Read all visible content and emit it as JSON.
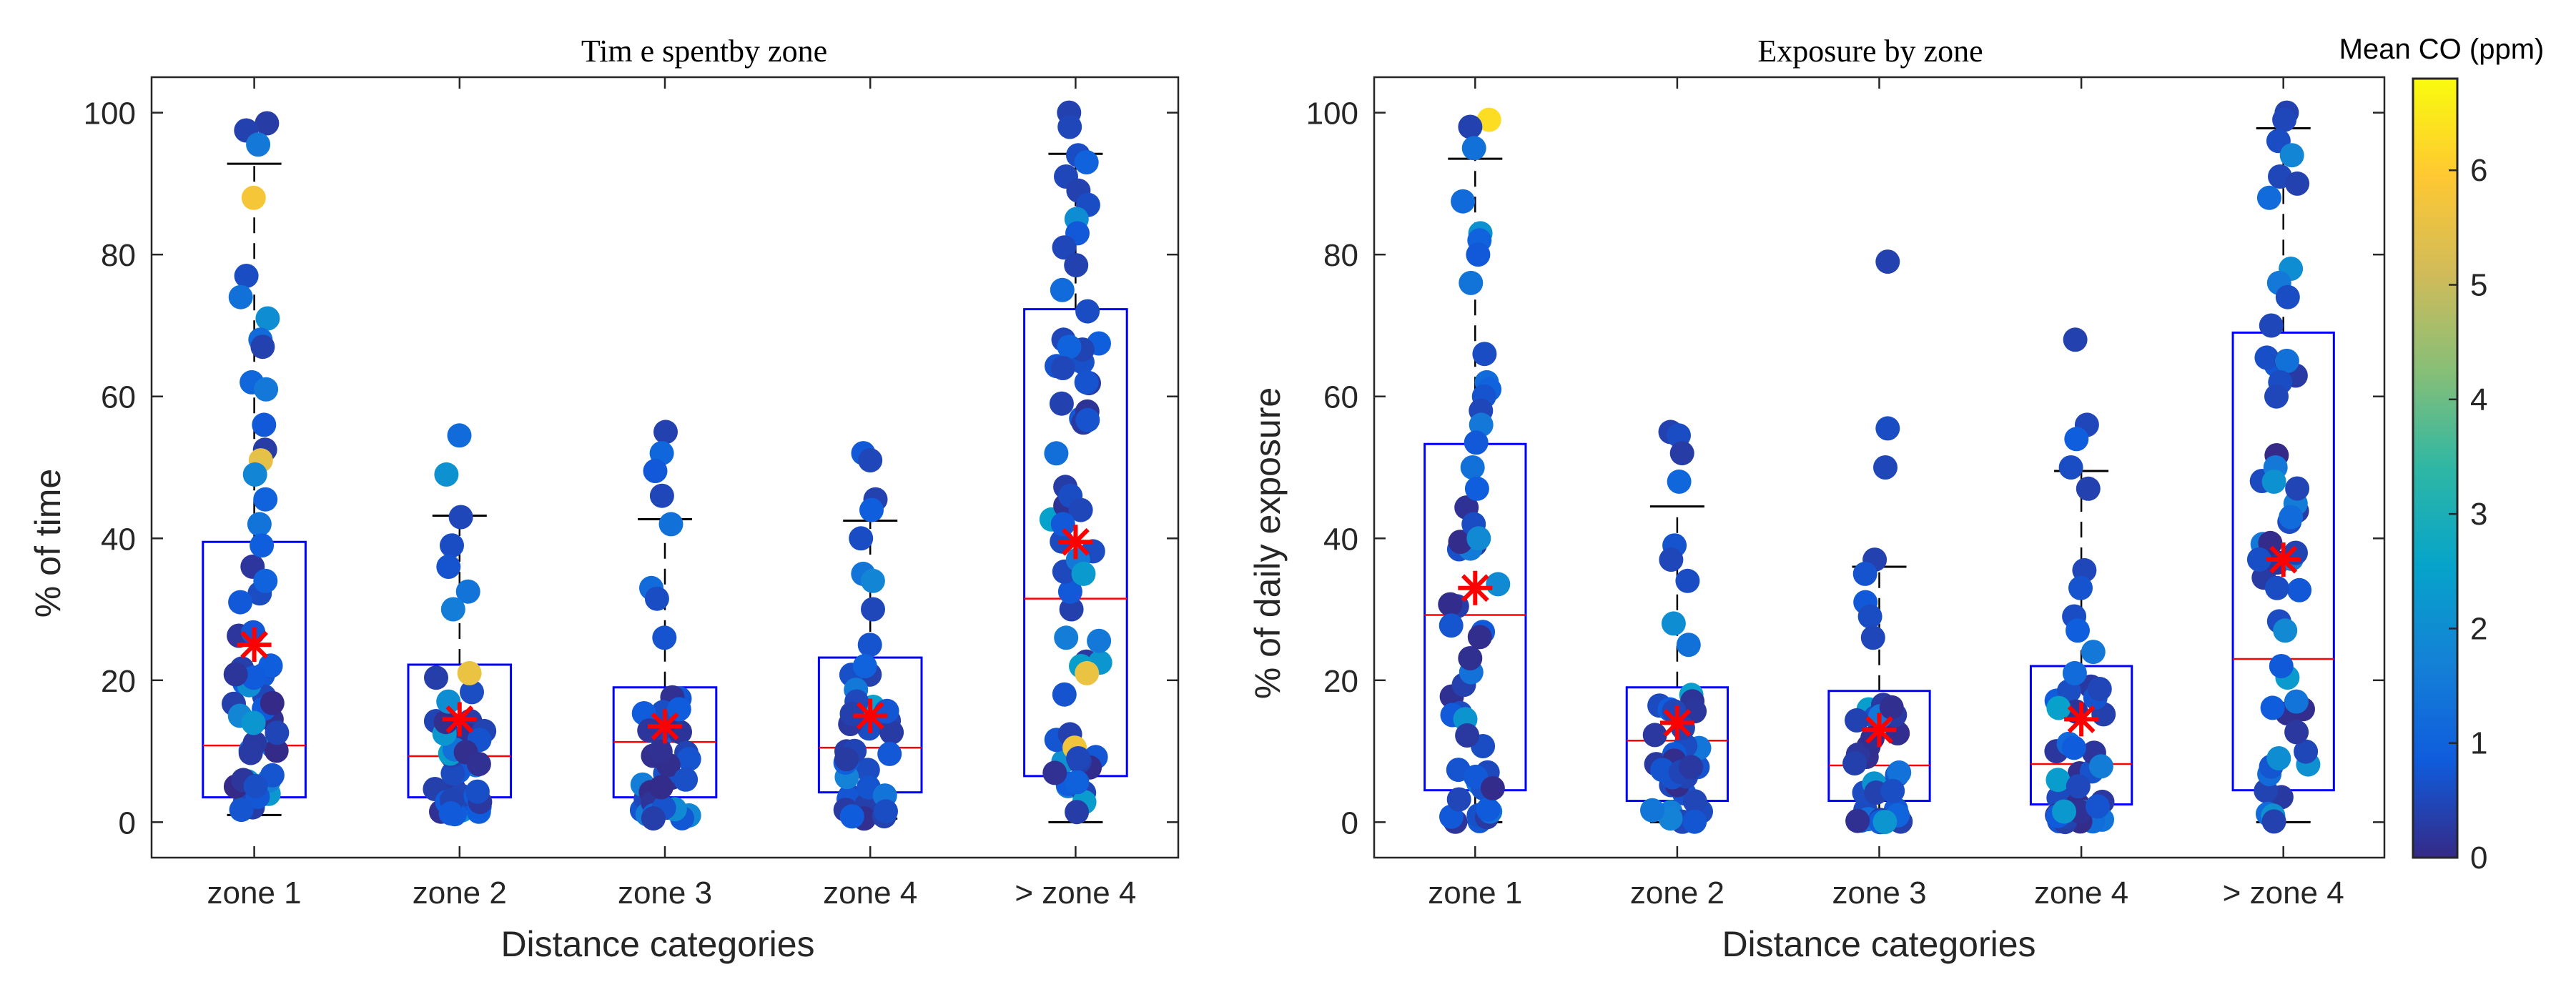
{
  "colorbar": {
    "label": "Mean CO (ppm)",
    "min": 0,
    "max": 6.8,
    "ticks": [
      "0",
      "1",
      "2",
      "3",
      "4",
      "5",
      "6"
    ],
    "stops": [
      "#352a87",
      "#0f5cdd",
      "#1481d6",
      "#06a4ca",
      "#2eb7a4",
      "#87bf77",
      "#d1bb59",
      "#fec832",
      "#f9fb0e"
    ]
  },
  "chart_data": [
    {
      "type": "scatter",
      "title": "Tim e spentby zone",
      "xlabel": "Distance categories",
      "ylabel": "% of time",
      "ylim": [
        -5,
        105
      ],
      "yticks": [
        "0",
        "20",
        "40",
        "60",
        "80",
        "100"
      ],
      "categories": [
        "zone 1",
        "zone 2",
        "zone 3",
        "zone 4",
        "> zone 4"
      ],
      "boxes": [
        {
          "q1": 3.5,
          "median": 10.8,
          "q3": 39.5,
          "mean": 25.0,
          "whisker_low": 1.0,
          "whisker_high": 92.8
        },
        {
          "q1": 3.5,
          "median": 9.3,
          "q3": 22.2,
          "mean": 14.5,
          "whisker_low": 1.0,
          "whisker_high": 43.2
        },
        {
          "q1": 3.5,
          "median": 11.3,
          "q3": 19.0,
          "mean": 13.5,
          "whisker_low": 0.5,
          "whisker_high": 42.7
        },
        {
          "q1": 4.2,
          "median": 10.5,
          "q3": 23.2,
          "mean": 15.0,
          "whisker_low": 0.5,
          "whisker_high": 42.5
        },
        {
          "q1": 6.5,
          "median": 31.5,
          "q3": 72.3,
          "mean": 39.5,
          "whisker_low": 0.0,
          "whisker_high": 94.2
        }
      ],
      "highlight_points": [
        {
          "cat": 0,
          "y": 98.5,
          "co": 0.3
        },
        {
          "cat": 0,
          "y": 97.5,
          "co": 0.4
        },
        {
          "cat": 0,
          "y": 95.5,
          "co": 1.5
        },
        {
          "cat": 0,
          "y": 88,
          "co": 5.8
        },
        {
          "cat": 0,
          "y": 77,
          "co": 0.6
        },
        {
          "cat": 0,
          "y": 74,
          "co": 1.3
        },
        {
          "cat": 0,
          "y": 71,
          "co": 2.0
        },
        {
          "cat": 0,
          "y": 68,
          "co": 1.2
        },
        {
          "cat": 0,
          "y": 67,
          "co": 0.4
        },
        {
          "cat": 0,
          "y": 62,
          "co": 1.1
        },
        {
          "cat": 0,
          "y": 61,
          "co": 1.5
        },
        {
          "cat": 0,
          "y": 56,
          "co": 0.8
        },
        {
          "cat": 0,
          "y": 52.5,
          "co": 0.3
        },
        {
          "cat": 0,
          "y": 51,
          "co": 5.5
        },
        {
          "cat": 0,
          "y": 49,
          "co": 1.8
        },
        {
          "cat": 0,
          "y": 45.5,
          "co": 1.0
        },
        {
          "cat": 0,
          "y": 42,
          "co": 1.4
        },
        {
          "cat": 0,
          "y": 39,
          "co": 0.9
        },
        {
          "cat": 0,
          "y": 34,
          "co": 1.0
        },
        {
          "cat": 0,
          "y": 31,
          "co": 0.8
        },
        {
          "cat": 0,
          "y": 15,
          "co": 1.8
        },
        {
          "cat": 0,
          "y": 14,
          "co": 2.2
        },
        {
          "cat": 1,
          "y": 54.5,
          "co": 1.2
        },
        {
          "cat": 1,
          "y": 49,
          "co": 2.1
        },
        {
          "cat": 1,
          "y": 43,
          "co": 0.5
        },
        {
          "cat": 1,
          "y": 39,
          "co": 0.6
        },
        {
          "cat": 1,
          "y": 36,
          "co": 0.7
        },
        {
          "cat": 1,
          "y": 32.5,
          "co": 1.4
        },
        {
          "cat": 1,
          "y": 30,
          "co": 1.6
        },
        {
          "cat": 1,
          "y": 21,
          "co": 5.6
        },
        {
          "cat": 1,
          "y": 17,
          "co": 2.0
        },
        {
          "cat": 2,
          "y": 55,
          "co": 0.4
        },
        {
          "cat": 2,
          "y": 52,
          "co": 1.1
        },
        {
          "cat": 2,
          "y": 49.5,
          "co": 0.8
        },
        {
          "cat": 2,
          "y": 46,
          "co": 0.5
        },
        {
          "cat": 2,
          "y": 42,
          "co": 1.3
        },
        {
          "cat": 2,
          "y": 33,
          "co": 1.2
        },
        {
          "cat": 2,
          "y": 31.5,
          "co": 0.6
        },
        {
          "cat": 2,
          "y": 26,
          "co": 0.7
        },
        {
          "cat": 3,
          "y": 52,
          "co": 0.8
        },
        {
          "cat": 3,
          "y": 51,
          "co": 0.5
        },
        {
          "cat": 3,
          "y": 45.5,
          "co": 0.4
        },
        {
          "cat": 3,
          "y": 44,
          "co": 0.9
        },
        {
          "cat": 3,
          "y": 40,
          "co": 0.6
        },
        {
          "cat": 3,
          "y": 35,
          "co": 1.4
        },
        {
          "cat": 3,
          "y": 34,
          "co": 1.8
        },
        {
          "cat": 3,
          "y": 30,
          "co": 0.5
        },
        {
          "cat": 3,
          "y": 25,
          "co": 0.7
        },
        {
          "cat": 3,
          "y": 22,
          "co": 1.0
        },
        {
          "cat": 4,
          "y": 100,
          "co": 0.4
        },
        {
          "cat": 4,
          "y": 98,
          "co": 0.5
        },
        {
          "cat": 4,
          "y": 94,
          "co": 0.6
        },
        {
          "cat": 4,
          "y": 93,
          "co": 1.0
        },
        {
          "cat": 4,
          "y": 91,
          "co": 0.5
        },
        {
          "cat": 4,
          "y": 89,
          "co": 0.4
        },
        {
          "cat": 4,
          "y": 87,
          "co": 0.6
        },
        {
          "cat": 4,
          "y": 85,
          "co": 2.0
        },
        {
          "cat": 4,
          "y": 83,
          "co": 0.8
        },
        {
          "cat": 4,
          "y": 81,
          "co": 0.5
        },
        {
          "cat": 4,
          "y": 78.5,
          "co": 0.4
        },
        {
          "cat": 4,
          "y": 75,
          "co": 1.2
        },
        {
          "cat": 4,
          "y": 72,
          "co": 0.6
        },
        {
          "cat": 4,
          "y": 68,
          "co": 0.5
        },
        {
          "cat": 4,
          "y": 67,
          "co": 1.0
        },
        {
          "cat": 4,
          "y": 64,
          "co": 0.5
        },
        {
          "cat": 4,
          "y": 62,
          "co": 0.7
        },
        {
          "cat": 4,
          "y": 59,
          "co": 0.4
        },
        {
          "cat": 4,
          "y": 46,
          "co": 0.6
        },
        {
          "cat": 4,
          "y": 44,
          "co": 0.5
        },
        {
          "cat": 4,
          "y": 42,
          "co": 0.8
        },
        {
          "cat": 4,
          "y": 37,
          "co": 1.5
        },
        {
          "cat": 4,
          "y": 35,
          "co": 2.3
        },
        {
          "cat": 4,
          "y": 26,
          "co": 1.6
        },
        {
          "cat": 4,
          "y": 22,
          "co": 2.4
        },
        {
          "cat": 4,
          "y": 21,
          "co": 5.6
        },
        {
          "cat": 4,
          "y": 18,
          "co": 0.7
        },
        {
          "cat": 4,
          "y": 10.5,
          "co": 5.7
        },
        {
          "cat": 4,
          "y": 9,
          "co": 0.5
        }
      ]
    },
    {
      "type": "scatter",
      "title": "Exposure by zone",
      "xlabel": "Distance categories",
      "ylabel": "% of daily exposure",
      "ylim": [
        -5,
        105
      ],
      "yticks": [
        "0",
        "20",
        "40",
        "60",
        "80",
        "100"
      ],
      "categories": [
        "zone 1",
        "zone 2",
        "zone 3",
        "zone 4",
        "> zone 4"
      ],
      "boxes": [
        {
          "q1": 4.5,
          "median": 29.2,
          "q3": 53.3,
          "mean": 33.0,
          "whisker_low": 0.0,
          "whisker_high": 93.5
        },
        {
          "q1": 3.0,
          "median": 11.5,
          "q3": 19.0,
          "mean": 14.0,
          "whisker_low": 0.0,
          "whisker_high": 44.5
        },
        {
          "q1": 3.0,
          "median": 8.0,
          "q3": 18.5,
          "mean": 13.0,
          "whisker_low": 0.0,
          "whisker_high": 36.0
        },
        {
          "q1": 2.5,
          "median": 8.2,
          "q3": 22.0,
          "mean": 14.5,
          "whisker_low": 0.0,
          "whisker_high": 49.5
        },
        {
          "q1": 4.5,
          "median": 23.0,
          "q3": 69.0,
          "mean": 37.0,
          "whisker_low": 0.0,
          "whisker_high": 97.8
        }
      ],
      "highlight_points": [
        {
          "cat": 0,
          "y": 99,
          "co": 6.3
        },
        {
          "cat": 0,
          "y": 98,
          "co": 0.4
        },
        {
          "cat": 0,
          "y": 95,
          "co": 1.3
        },
        {
          "cat": 0,
          "y": 87.5,
          "co": 1.2
        },
        {
          "cat": 0,
          "y": 83,
          "co": 2.1
        },
        {
          "cat": 0,
          "y": 82,
          "co": 1.0
        },
        {
          "cat": 0,
          "y": 80,
          "co": 0.8
        },
        {
          "cat": 0,
          "y": 76,
          "co": 1.4
        },
        {
          "cat": 0,
          "y": 66,
          "co": 0.6
        },
        {
          "cat": 0,
          "y": 62,
          "co": 1.2
        },
        {
          "cat": 0,
          "y": 61,
          "co": 1.0
        },
        {
          "cat": 0,
          "y": 60,
          "co": 0.7
        },
        {
          "cat": 0,
          "y": 58,
          "co": 0.5
        },
        {
          "cat": 0,
          "y": 56,
          "co": 1.5
        },
        {
          "cat": 0,
          "y": 53.5,
          "co": 0.8
        },
        {
          "cat": 0,
          "y": 50,
          "co": 1.3
        },
        {
          "cat": 0,
          "y": 47,
          "co": 0.9
        },
        {
          "cat": 0,
          "y": 42,
          "co": 0.6
        },
        {
          "cat": 0,
          "y": 40,
          "co": 1.9
        },
        {
          "cat": 1,
          "y": 55,
          "co": 0.4
        },
        {
          "cat": 1,
          "y": 54.5,
          "co": 0.6
        },
        {
          "cat": 1,
          "y": 52,
          "co": 0.3
        },
        {
          "cat": 1,
          "y": 48,
          "co": 1.1
        },
        {
          "cat": 1,
          "y": 39,
          "co": 0.7
        },
        {
          "cat": 1,
          "y": 37,
          "co": 0.5
        },
        {
          "cat": 1,
          "y": 34,
          "co": 0.6
        },
        {
          "cat": 1,
          "y": 28,
          "co": 2.0
        },
        {
          "cat": 1,
          "y": 25,
          "co": 1.3
        },
        {
          "cat": 2,
          "y": 79,
          "co": 0.4
        },
        {
          "cat": 2,
          "y": 55.5,
          "co": 0.6
        },
        {
          "cat": 2,
          "y": 50,
          "co": 0.5
        },
        {
          "cat": 2,
          "y": 37,
          "co": 0.4
        },
        {
          "cat": 2,
          "y": 35,
          "co": 0.7
        },
        {
          "cat": 2,
          "y": 31,
          "co": 0.8
        },
        {
          "cat": 2,
          "y": 29,
          "co": 0.6
        },
        {
          "cat": 2,
          "y": 26,
          "co": 0.5
        },
        {
          "cat": 3,
          "y": 68,
          "co": 0.4
        },
        {
          "cat": 3,
          "y": 56,
          "co": 0.5
        },
        {
          "cat": 3,
          "y": 54,
          "co": 0.9
        },
        {
          "cat": 3,
          "y": 50,
          "co": 0.6
        },
        {
          "cat": 3,
          "y": 47,
          "co": 0.4
        },
        {
          "cat": 3,
          "y": 35.5,
          "co": 0.5
        },
        {
          "cat": 3,
          "y": 33,
          "co": 0.7
        },
        {
          "cat": 3,
          "y": 29,
          "co": 0.6
        },
        {
          "cat": 3,
          "y": 27,
          "co": 0.9
        },
        {
          "cat": 3,
          "y": 24,
          "co": 1.5
        },
        {
          "cat": 3,
          "y": 21,
          "co": 1.2
        },
        {
          "cat": 4,
          "y": 100,
          "co": 0.4
        },
        {
          "cat": 4,
          "y": 99,
          "co": 0.5
        },
        {
          "cat": 4,
          "y": 96,
          "co": 0.6
        },
        {
          "cat": 4,
          "y": 94,
          "co": 1.8
        },
        {
          "cat": 4,
          "y": 91,
          "co": 0.5
        },
        {
          "cat": 4,
          "y": 90,
          "co": 0.4
        },
        {
          "cat": 4,
          "y": 88,
          "co": 1.2
        },
        {
          "cat": 4,
          "y": 78,
          "co": 2.0
        },
        {
          "cat": 4,
          "y": 76,
          "co": 1.5
        },
        {
          "cat": 4,
          "y": 74,
          "co": 0.6
        },
        {
          "cat": 4,
          "y": 70,
          "co": 0.5
        },
        {
          "cat": 4,
          "y": 65,
          "co": 1.3
        },
        {
          "cat": 4,
          "y": 62,
          "co": 0.6
        },
        {
          "cat": 4,
          "y": 60,
          "co": 0.5
        },
        {
          "cat": 4,
          "y": 50,
          "co": 1.5
        },
        {
          "cat": 4,
          "y": 48,
          "co": 2.1
        },
        {
          "cat": 4,
          "y": 43,
          "co": 1.2
        },
        {
          "cat": 4,
          "y": 33,
          "co": 0.6
        },
        {
          "cat": 4,
          "y": 27,
          "co": 1.9
        },
        {
          "cat": 4,
          "y": 17,
          "co": 1.4
        },
        {
          "cat": 4,
          "y": 9,
          "co": 2.0
        }
      ],
      "low_cluster_note": "dense points between 0 and box Q3 for every zone"
    }
  ]
}
